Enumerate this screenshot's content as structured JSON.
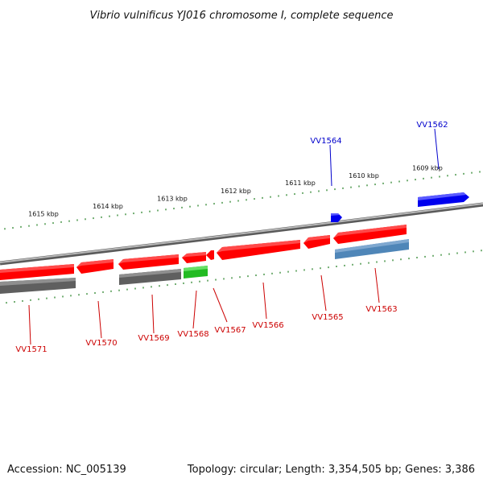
{
  "title": "Vibrio vulnificus YJ016 chromosome I, complete sequence",
  "footer": {
    "accession": "Accession: NC_005139",
    "summary": "Topology: circular; Length: 3,354,505 bp; Genes: 3,386"
  },
  "scale_labels": [
    "1615 kbp",
    "1614 kbp",
    "1613 kbp",
    "1612 kbp",
    "1611 kbp",
    "1610 kbp",
    "1609 kbp"
  ],
  "gene_labels": {
    "forward": [
      "VV1564",
      "VV1562"
    ],
    "reverse": [
      "VV1571",
      "VV1570",
      "VV1569",
      "VV1568",
      "VV1567",
      "VV1566",
      "VV1565",
      "VV1563"
    ]
  },
  "colors": {
    "forward_gene": "#0000ee",
    "reverse_gene": "#ee0000",
    "reverse_cds": "#ff1a1a",
    "rna_gene": "#33cc33",
    "tick": "#1a7a1a",
    "backbone": "#8a8a8a",
    "gray_feature": "#5f5f5f",
    "steelblue_feature": "#4f86b8"
  }
}
